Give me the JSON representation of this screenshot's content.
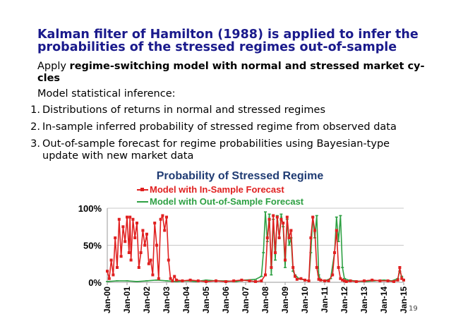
{
  "slide": {
    "title_line1": "Kalman filter of Hamilton (1988) is applied to infer the",
    "title_line2": "probabilities of the stressed regimes out-of-sample",
    "apply_prefix": "Apply ",
    "apply_bold_line1": "regime-switching model with normal and stressed market cy-",
    "apply_bold_line2": "cles",
    "inference_heading": "Model statistical inference:",
    "list": [
      {
        "num": "1.",
        "line1": "Distributions of returns in normal and stressed regimes",
        "line2": ""
      },
      {
        "num": "2.",
        "line1": "In-sample inferred probability of stressed regime from observed data",
        "line2": ""
      },
      {
        "num": "3.",
        "line1": "Out-of-sample forecast for regime probabilities using Bayesian-type",
        "line2": "update with new market data"
      }
    ],
    "page_number": "19"
  },
  "chart_data": {
    "type": "line",
    "title": "Probability of Stressed Regime",
    "title_color": "#1f3b73",
    "xlabel": "",
    "ylabel": "",
    "ylim": [
      0,
      100
    ],
    "y_ticks": [
      "0%",
      "50%",
      "100%"
    ],
    "y_tick_values": [
      0,
      50,
      100
    ],
    "x_ticks": [
      "Jan-00",
      "Jan-01",
      "Jan-02",
      "Jan-03",
      "Jan-04",
      "Jan-05",
      "Jan-06",
      "Jan-07",
      "Jan-08",
      "Jan-09",
      "Jan-10",
      "Jan-11",
      "Jan-12",
      "Jan-13",
      "Jan-14",
      "Jan-15"
    ],
    "x_range": [
      2000,
      2015
    ],
    "grid": true,
    "legend_position": "top",
    "series": [
      {
        "name": "Model with In-Sample Forecast",
        "color": "#e02020",
        "marker": "square",
        "x": [
          2000.0,
          2000.1,
          2000.2,
          2000.3,
          2000.4,
          2000.5,
          2000.6,
          2000.7,
          2000.8,
          2000.9,
          2001.0,
          2001.1,
          2001.15,
          2001.2,
          2001.3,
          2001.4,
          2001.5,
          2001.6,
          2001.7,
          2001.8,
          2001.9,
          2002.0,
          2002.1,
          2002.2,
          2002.3,
          2002.4,
          2002.5,
          2002.6,
          2002.7,
          2002.8,
          2002.9,
          2003.0,
          2003.1,
          2003.2,
          2003.3,
          2003.4,
          2003.5,
          2003.8,
          2004.2,
          2004.6,
          2005.0,
          2005.5,
          2006.0,
          2006.4,
          2006.8,
          2007.2,
          2007.5,
          2007.8,
          2008.0,
          2008.1,
          2008.2,
          2008.3,
          2008.4,
          2008.5,
          2008.6,
          2008.7,
          2008.8,
          2008.9,
          2009.0,
          2009.1,
          2009.2,
          2009.3,
          2009.4,
          2009.5,
          2009.6,
          2009.8,
          2010.0,
          2010.2,
          2010.3,
          2010.4,
          2010.5,
          2010.6,
          2010.7,
          2010.8,
          2011.0,
          2011.2,
          2011.4,
          2011.5,
          2011.6,
          2011.7,
          2011.8,
          2011.9,
          2012.0,
          2012.1,
          2012.3,
          2012.6,
          2013.0,
          2013.4,
          2013.8,
          2014.2,
          2014.5,
          2014.7,
          2014.8,
          2014.9,
          2015.0
        ],
        "values": [
          15,
          5,
          30,
          10,
          60,
          20,
          85,
          35,
          75,
          55,
          88,
          40,
          88,
          30,
          85,
          60,
          80,
          20,
          40,
          70,
          50,
          65,
          25,
          30,
          10,
          80,
          50,
          5,
          85,
          90,
          70,
          88,
          30,
          5,
          2,
          8,
          3,
          2,
          3,
          2,
          1,
          2,
          1,
          2,
          3,
          2,
          1,
          2,
          10,
          60,
          85,
          20,
          90,
          40,
          88,
          60,
          85,
          80,
          30,
          88,
          60,
          70,
          20,
          8,
          4,
          5,
          3,
          2,
          60,
          88,
          70,
          20,
          4,
          3,
          2,
          2,
          10,
          40,
          70,
          20,
          5,
          3,
          2,
          1,
          2,
          1,
          2,
          3,
          2,
          2,
          1,
          3,
          20,
          5,
          3
        ]
      },
      {
        "name": "Model with Out-of-Sample Forecast",
        "color": "#2ea043",
        "marker": "dash",
        "x": [
          2000.0,
          2000.5,
          2001.0,
          2001.5,
          2002.0,
          2002.5,
          2003.0,
          2003.5,
          2004.0,
          2004.5,
          2005.0,
          2005.5,
          2006.0,
          2006.5,
          2007.0,
          2007.5,
          2007.8,
          2007.9,
          2008.0,
          2008.1,
          2008.2,
          2008.3,
          2008.4,
          2008.5,
          2008.6,
          2008.7,
          2008.8,
          2008.9,
          2009.0,
          2009.1,
          2009.2,
          2009.3,
          2009.4,
          2009.5,
          2009.7,
          2010.0,
          2010.2,
          2010.3,
          2010.4,
          2010.5,
          2010.6,
          2010.7,
          2010.8,
          2011.0,
          2011.3,
          2011.5,
          2011.6,
          2011.7,
          2011.8,
          2011.9,
          2012.0,
          2012.2,
          2012.5,
          2013.0,
          2013.5,
          2014.0,
          2014.4,
          2014.7,
          2014.8,
          2014.9,
          2015.0
        ],
        "values": [
          1,
          2,
          2,
          1,
          2,
          3,
          2,
          1,
          2,
          1,
          3,
          2,
          2,
          1,
          3,
          4,
          8,
          40,
          95,
          55,
          92,
          10,
          85,
          30,
          90,
          60,
          92,
          75,
          20,
          85,
          50,
          60,
          15,
          10,
          5,
          3,
          2,
          40,
          88,
          60,
          90,
          10,
          3,
          2,
          5,
          40,
          88,
          55,
          90,
          20,
          5,
          3,
          2,
          1,
          2,
          3,
          2,
          5,
          15,
          8,
          2
        ]
      }
    ]
  }
}
